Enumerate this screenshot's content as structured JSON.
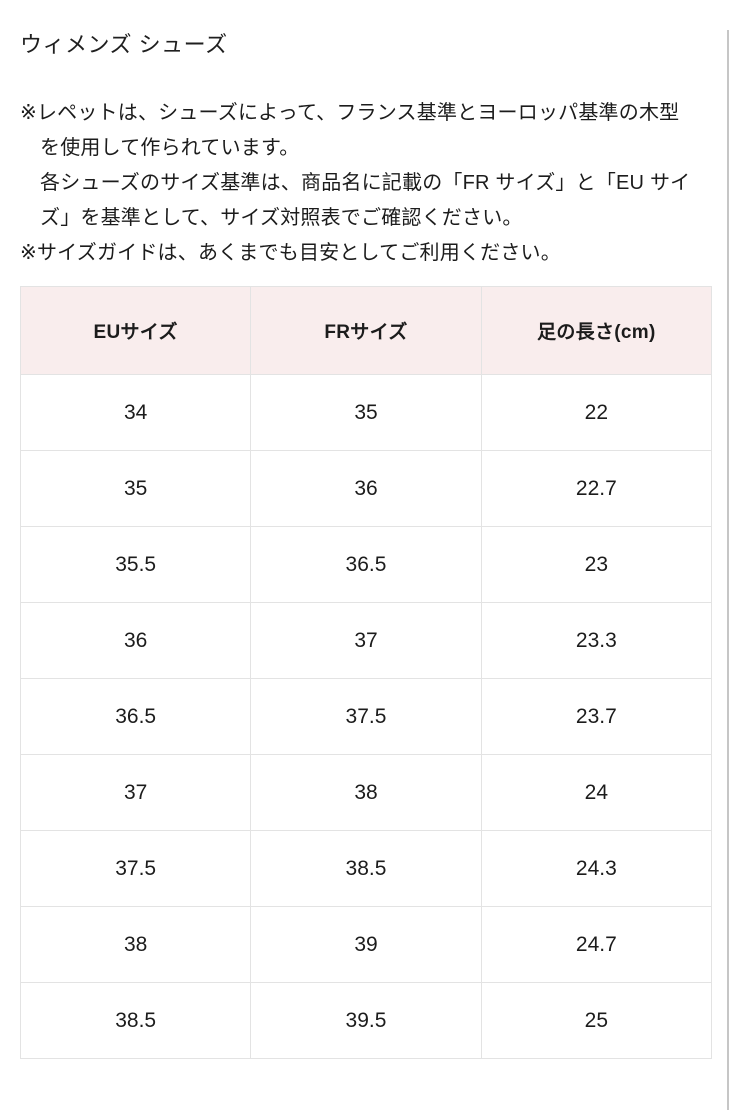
{
  "page": {
    "title": "ウィメンズ シューズ"
  },
  "notes": {
    "note_repetto": "※レペットは、シューズによって、フランス基準とヨーロッパ基準の木型\nを使用して作られています。\n各シューズのサイズ基準は、商品名に記載の「FR サイズ」と「EU サイ\nズ」を基準として、サイズ対照表でご確認ください。",
    "note_size_guide": "※サイズガイドは、あくまでも目安としてご利用ください。"
  },
  "table": {
    "headers": [
      "EUサイズ",
      "FRサイズ",
      "足の長さ(cm)"
    ],
    "rows": [
      [
        "34",
        "35",
        "22"
      ],
      [
        "35",
        "36",
        "22.7"
      ],
      [
        "35.5",
        "36.5",
        "23"
      ],
      [
        "36",
        "37",
        "23.3"
      ],
      [
        "36.5",
        "37.5",
        "23.7"
      ],
      [
        "37",
        "38",
        "24"
      ],
      [
        "37.5",
        "38.5",
        "24.3"
      ],
      [
        "38",
        "39",
        "24.7"
      ],
      [
        "38.5",
        "39.5",
        "25"
      ]
    ]
  },
  "colors": {
    "header_bg": "#f9eded",
    "table_border": "#e3e3e3",
    "text": "#1c1c1c",
    "scrollbar": "#c6c6c6"
  }
}
